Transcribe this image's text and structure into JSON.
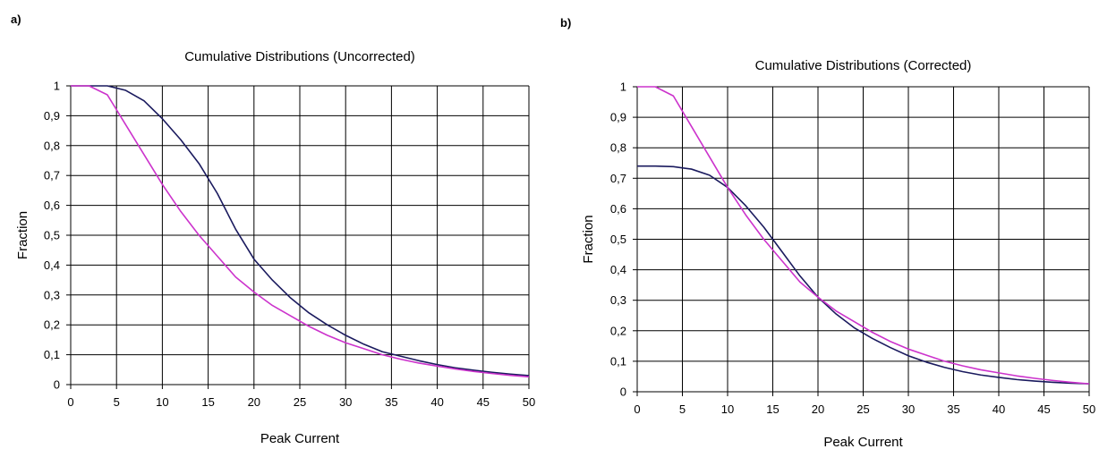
{
  "chart_data": [
    {
      "panel_label": "a)",
      "type": "line",
      "title": "Cumulative Distributions (Uncorrected)",
      "xlabel": "Peak Current",
      "ylabel": "Fraction",
      "xlim": [
        0,
        50
      ],
      "ylim": [
        0,
        1
      ],
      "xticks": [
        "0",
        "5",
        "10",
        "15",
        "20",
        "25",
        "30",
        "35",
        "40",
        "45",
        "50"
      ],
      "yticks": [
        "0",
        "0,1",
        "0,2",
        "0,3",
        "0,4",
        "0,5",
        "0,6",
        "0,7",
        "0,8",
        "0,9",
        "1"
      ],
      "grid": true,
      "series": [
        {
          "color": "#1a1a5e",
          "x": [
            0,
            2,
            4,
            6,
            8,
            10,
            12,
            14,
            16,
            18,
            20,
            22,
            24,
            26,
            28,
            30,
            32,
            34,
            36,
            38,
            40,
            42,
            44,
            46,
            48,
            50
          ],
          "y": [
            1,
            1,
            1,
            0.985,
            0.95,
            0.89,
            0.82,
            0.74,
            0.64,
            0.52,
            0.42,
            0.35,
            0.29,
            0.24,
            0.2,
            0.165,
            0.135,
            0.11,
            0.095,
            0.08,
            0.067,
            0.056,
            0.048,
            0.041,
            0.035,
            0.03
          ]
        },
        {
          "color": "#cc33cc",
          "x": [
            0,
            2,
            4,
            6,
            8,
            10,
            12,
            14,
            16,
            18,
            20,
            22,
            24,
            26,
            28,
            30,
            32,
            34,
            36,
            38,
            40,
            42,
            44,
            46,
            48,
            50
          ],
          "y": [
            1,
            1,
            0.97,
            0.87,
            0.77,
            0.67,
            0.58,
            0.5,
            0.43,
            0.36,
            0.31,
            0.265,
            0.23,
            0.195,
            0.165,
            0.14,
            0.12,
            0.1,
            0.085,
            0.072,
            0.062,
            0.052,
            0.044,
            0.037,
            0.031,
            0.026
          ]
        }
      ]
    },
    {
      "panel_label": "b)",
      "type": "line",
      "title": "Cumulative Distributions (Corrected)",
      "xlabel": "Peak Current",
      "ylabel": "Fraction",
      "xlim": [
        0,
        50
      ],
      "ylim": [
        0,
        1
      ],
      "xticks": [
        "0",
        "5",
        "10",
        "15",
        "20",
        "25",
        "30",
        "35",
        "40",
        "45",
        "50"
      ],
      "yticks": [
        "0",
        "0,1",
        "0,2",
        "0,3",
        "0,4",
        "0,5",
        "0,6",
        "0,7",
        "0,8",
        "0,9",
        "1"
      ],
      "grid": true,
      "series": [
        {
          "color": "#1a1a5e",
          "x": [
            0,
            2,
            4,
            6,
            8,
            10,
            12,
            14,
            16,
            18,
            20,
            22,
            24,
            26,
            28,
            30,
            32,
            34,
            36,
            38,
            40,
            42,
            44,
            46,
            48,
            50
          ],
          "y": [
            0.74,
            0.74,
            0.738,
            0.73,
            0.71,
            0.67,
            0.61,
            0.54,
            0.46,
            0.38,
            0.31,
            0.255,
            0.21,
            0.175,
            0.145,
            0.118,
            0.097,
            0.08,
            0.066,
            0.055,
            0.047,
            0.04,
            0.035,
            0.031,
            0.028,
            0.026
          ]
        },
        {
          "color": "#cc33cc",
          "x": [
            0,
            2,
            4,
            6,
            8,
            10,
            12,
            14,
            16,
            18,
            20,
            22,
            24,
            26,
            28,
            30,
            32,
            34,
            36,
            38,
            40,
            42,
            44,
            46,
            48,
            50
          ],
          "y": [
            1,
            1,
            0.97,
            0.87,
            0.77,
            0.67,
            0.58,
            0.5,
            0.43,
            0.36,
            0.31,
            0.265,
            0.23,
            0.195,
            0.165,
            0.14,
            0.12,
            0.1,
            0.085,
            0.072,
            0.062,
            0.052,
            0.044,
            0.037,
            0.031,
            0.026
          ]
        }
      ]
    }
  ]
}
